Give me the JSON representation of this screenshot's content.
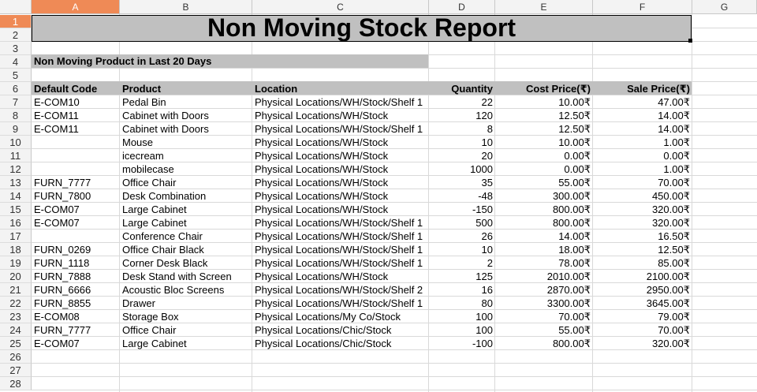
{
  "sheet": {
    "columns": [
      "A",
      "B",
      "C",
      "D",
      "E",
      "F",
      "G"
    ],
    "active_column": "A",
    "active_row": "1",
    "row_numbers": [
      "1",
      "2",
      "3",
      "4",
      "5",
      "6",
      "7",
      "8",
      "9",
      "10",
      "11",
      "12",
      "13",
      "14",
      "15",
      "16",
      "17",
      "18",
      "19",
      "20",
      "21",
      "22",
      "23",
      "24",
      "25",
      "26",
      "27",
      "28"
    ]
  },
  "report": {
    "title": "Non Moving Stock Report",
    "subtitle": "Non Moving Product in Last 20 Days",
    "headers": [
      "Default Code",
      "Product",
      "Location",
      "Quantity",
      "Cost Price(₹)",
      "Sale Price(₹)"
    ],
    "rows": [
      [
        "E-COM10",
        "Pedal Bin",
        "Physical Locations/WH/Stock/Shelf 1",
        "22",
        "10.00₹",
        "47.00₹"
      ],
      [
        "E-COM11",
        "Cabinet with Doors",
        "Physical Locations/WH/Stock",
        "120",
        "12.50₹",
        "14.00₹"
      ],
      [
        "E-COM11",
        "Cabinet with Doors",
        "Physical Locations/WH/Stock/Shelf 1",
        "8",
        "12.50₹",
        "14.00₹"
      ],
      [
        "",
        "Mouse",
        "Physical Locations/WH/Stock",
        "10",
        "10.00₹",
        "1.00₹"
      ],
      [
        "",
        "icecream",
        "Physical Locations/WH/Stock",
        "20",
        "0.00₹",
        "0.00₹"
      ],
      [
        "",
        "mobilecase",
        "Physical Locations/WH/Stock",
        "1000",
        "0.00₹",
        "1.00₹"
      ],
      [
        "FURN_7777",
        "Office Chair",
        "Physical Locations/WH/Stock",
        "35",
        "55.00₹",
        "70.00₹"
      ],
      [
        "FURN_7800",
        "Desk Combination",
        "Physical Locations/WH/Stock",
        "-48",
        "300.00₹",
        "450.00₹"
      ],
      [
        "E-COM07",
        "Large Cabinet",
        "Physical Locations/WH/Stock",
        "-150",
        "800.00₹",
        "320.00₹"
      ],
      [
        "E-COM07",
        "Large Cabinet",
        "Physical Locations/WH/Stock/Shelf 1",
        "500",
        "800.00₹",
        "320.00₹"
      ],
      [
        "",
        "Conference Chair",
        "Physical Locations/WH/Stock/Shelf 1",
        "26",
        "14.00₹",
        "16.50₹"
      ],
      [
        "FURN_0269",
        "Office Chair Black",
        "Physical Locations/WH/Stock/Shelf 1",
        "10",
        "18.00₹",
        "12.50₹"
      ],
      [
        "FURN_1118",
        "Corner Desk Black",
        "Physical Locations/WH/Stock/Shelf 1",
        "2",
        "78.00₹",
        "85.00₹"
      ],
      [
        "FURN_7888",
        "Desk Stand with Screen",
        "Physical Locations/WH/Stock",
        "125",
        "2010.00₹",
        "2100.00₹"
      ],
      [
        "FURN_6666",
        "Acoustic Bloc Screens",
        "Physical Locations/WH/Stock/Shelf 2",
        "16",
        "2870.00₹",
        "2950.00₹"
      ],
      [
        "FURN_8855",
        "Drawer",
        "Physical Locations/WH/Stock/Shelf 1",
        "80",
        "3300.00₹",
        "3645.00₹"
      ],
      [
        "E-COM08",
        "Storage Box",
        "Physical Locations/My Co/Stock",
        "100",
        "70.00₹",
        "79.00₹"
      ],
      [
        "FURN_7777",
        "Office Chair",
        "Physical Locations/Chic/Stock",
        "100",
        "55.00₹",
        "70.00₹"
      ],
      [
        "E-COM07",
        "Large Cabinet",
        "Physical Locations/Chic/Stock",
        "-100",
        "800.00₹",
        "320.00₹"
      ]
    ]
  },
  "colors": {
    "header_active": "#ef8a56",
    "band_gray": "#c0c0c0"
  }
}
